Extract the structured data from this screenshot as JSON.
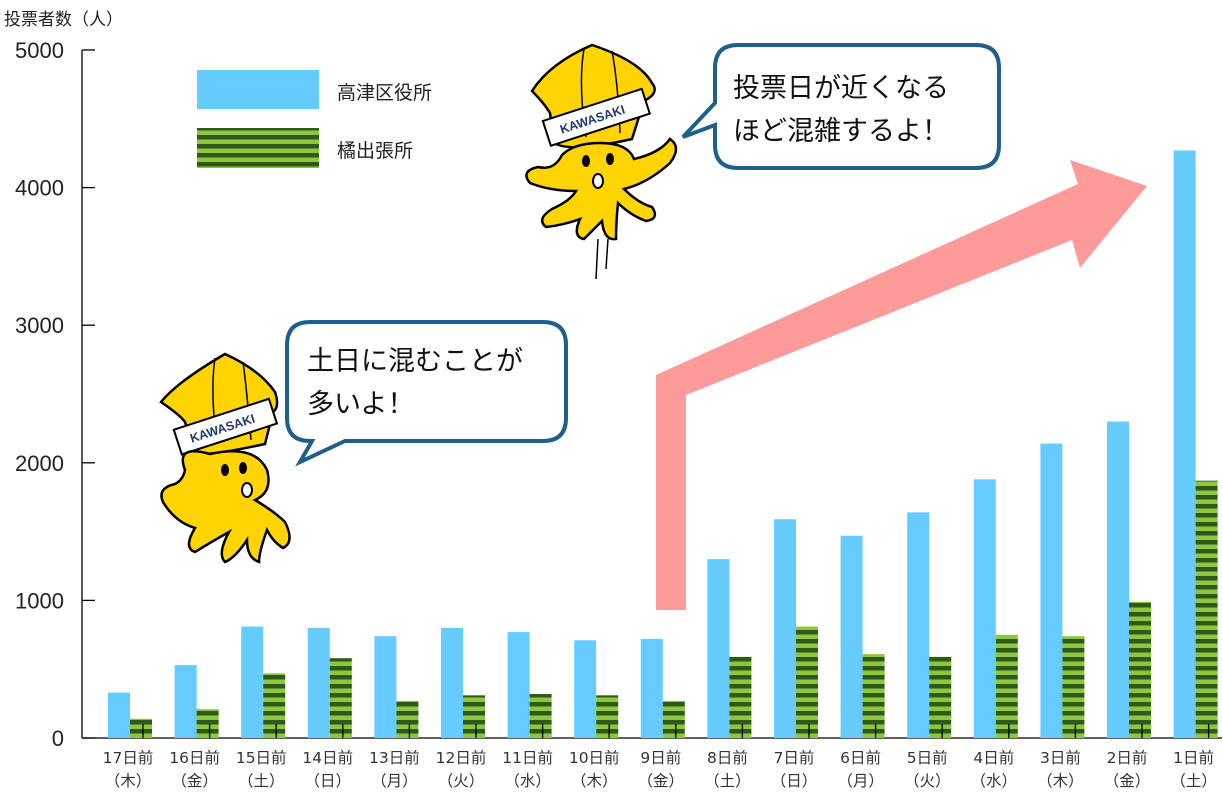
{
  "chart_data": {
    "type": "bar",
    "ylabel": "投票者数（人）",
    "ylim": [
      0,
      5000
    ],
    "yticks": [
      "5000",
      "4000",
      "3000",
      "2000",
      "1000",
      "0"
    ],
    "grid": false,
    "legend_position": "top-left",
    "categories": [
      {
        "day": "17日前",
        "weekday": "（木）"
      },
      {
        "day": "16日前",
        "weekday": "（金）"
      },
      {
        "day": "15日前",
        "weekday": "（土）"
      },
      {
        "day": "14日前",
        "weekday": "（日）"
      },
      {
        "day": "13日前",
        "weekday": "（月）"
      },
      {
        "day": "12日前",
        "weekday": "（火）"
      },
      {
        "day": "11日前",
        "weekday": "（水）"
      },
      {
        "day": "10日前",
        "weekday": "（木）"
      },
      {
        "day": "9日前",
        "weekday": "（金）"
      },
      {
        "day": "8日前",
        "weekday": "（土）"
      },
      {
        "day": "7日前",
        "weekday": "（日）"
      },
      {
        "day": "6日前",
        "weekday": "（月）"
      },
      {
        "day": "5日前",
        "weekday": "（火）"
      },
      {
        "day": "4日前",
        "weekday": "（水）"
      },
      {
        "day": "3日前",
        "weekday": "（木）"
      },
      {
        "day": "2日前",
        "weekday": "（金）"
      },
      {
        "day": "1日前",
        "weekday": "（土）"
      }
    ],
    "series": [
      {
        "name": "高津区役所",
        "color": "#66ccff",
        "values": [
          330,
          530,
          810,
          800,
          740,
          800,
          770,
          710,
          720,
          1300,
          1590,
          1470,
          1640,
          1880,
          2140,
          2300,
          4270
        ]
      },
      {
        "name": "橘出張所",
        "color": "#5d9a2c",
        "values": [
          140,
          210,
          470,
          580,
          270,
          310,
          320,
          310,
          270,
          590,
          810,
          610,
          590,
          750,
          740,
          990,
          1870
        ]
      }
    ]
  },
  "annotations": {
    "bubble_left": [
      "土日に混むことが",
      "多いよ！"
    ],
    "bubble_right": [
      "投票日が近くなる",
      "ほど混雑するよ！"
    ],
    "mascot_band_text": "KAWASAKI"
  }
}
